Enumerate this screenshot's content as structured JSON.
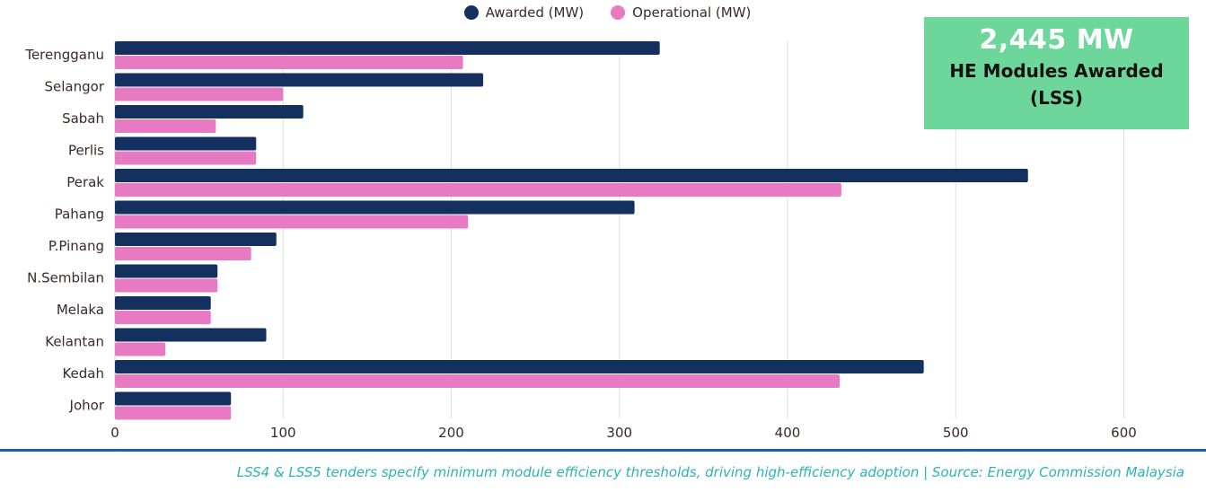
{
  "chart_data": {
    "type": "bar",
    "orientation": "horizontal",
    "title": "",
    "xlabel": "",
    "ylabel": "",
    "categories": [
      "Terengganu",
      "Selangor",
      "Sabah",
      "Perlis",
      "Perak",
      "Pahang",
      "P.Pinang",
      "N.Sembilan",
      "Melaka",
      "Kelantan",
      "Kedah",
      "Johor"
    ],
    "series": [
      {
        "name": "Awarded (MW)",
        "color": "#14305f",
        "values": [
          324,
          219,
          112,
          84,
          543,
          309,
          96,
          61,
          57,
          90,
          481,
          69
        ]
      },
      {
        "name": "Operational (MW)",
        "color": "#e87ac4",
        "values": [
          207,
          100,
          60,
          84,
          432,
          210,
          81,
          61,
          57,
          30,
          431,
          69
        ]
      }
    ],
    "xlim": [
      0,
      630
    ],
    "xticks": [
      0,
      100,
      200,
      300,
      400,
      500,
      600
    ],
    "grid": true,
    "legend_position": "top-center"
  },
  "kpi": {
    "value": "2,445 MW",
    "label": "HE Modules Awarded (LSS)",
    "color": "#6dd69a"
  },
  "footer": {
    "note": "LSS4 & LSS5 tenders specify minimum module efficiency thresholds, driving high-efficiency adoption | Source: Energy Commission Malaysia"
  }
}
